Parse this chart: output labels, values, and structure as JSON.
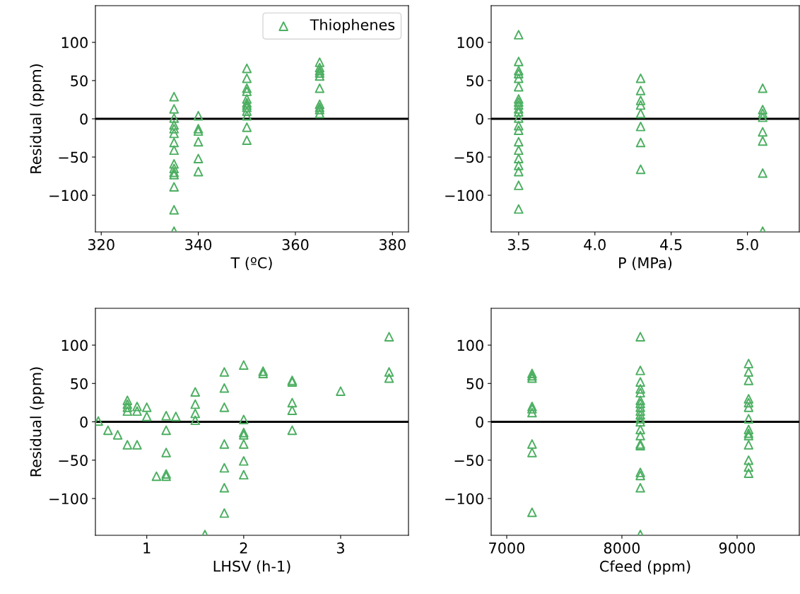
{
  "chart_data": [
    {
      "type": "scatter",
      "xlabel": "T (ºC)",
      "ylabel": "Residual (ppm)",
      "xlim": [
        318.8,
        383.3
      ],
      "xticks": [
        320,
        340,
        360,
        380
      ],
      "ylim": [
        -148,
        148
      ],
      "yticks": [
        -100,
        -50,
        0,
        50,
        100
      ],
      "marker": "triangle",
      "legend": "top right",
      "grid": false,
      "ref_lines": [
        {
          "axis": "y",
          "value": 0,
          "color": "#000000"
        }
      ],
      "series": [
        {
          "name": "Thiophenes",
          "color": "#4daf62",
          "x": [
            335,
            335,
            335,
            335,
            335,
            335,
            335,
            335,
            335,
            335,
            335,
            335,
            335,
            335,
            335,
            340,
            340,
            340,
            340,
            340,
            340,
            350,
            350,
            350,
            350,
            350,
            350,
            350,
            350,
            350,
            350,
            350,
            350,
            365,
            365,
            365,
            365,
            365,
            365,
            365,
            365,
            365,
            365
          ],
          "values": [
            29,
            13,
            1,
            -8,
            -13,
            -19,
            -31,
            -41,
            -59,
            -65,
            -70,
            -73,
            -89,
            -119,
            -147,
            4,
            -13,
            -16,
            -30,
            -52,
            -69,
            66,
            53,
            40,
            36,
            26,
            21,
            18,
            15,
            10,
            4,
            -11,
            -28,
            74,
            67,
            63,
            60,
            56,
            40,
            19,
            15,
            12,
            7
          ]
        }
      ]
    },
    {
      "type": "scatter",
      "xlabel": "P (MPa)",
      "xlim": [
        3.32,
        5.34
      ],
      "xticks": [
        3.5,
        {
          "value": 4,
          "label": "4.0"
        },
        4.5,
        {
          "value": 5,
          "label": "5.0"
        }
      ],
      "ylim": [
        -148,
        148
      ],
      "yticks": [
        -100,
        -50,
        0,
        50,
        100
      ],
      "marker": "triangle",
      "grid": false,
      "ref_lines": [
        {
          "axis": "y",
          "value": 0,
          "color": "#000000"
        }
      ],
      "series": [
        {
          "color": "#4daf62",
          "x": [
            3.5,
            3.5,
            3.5,
            3.5,
            3.5,
            3.5,
            3.5,
            3.5,
            3.5,
            3.5,
            3.5,
            3.5,
            3.5,
            3.5,
            3.5,
            3.5,
            3.5,
            3.5,
            3.5,
            3.5,
            3.5,
            4.3,
            4.3,
            4.3,
            4.3,
            4.3,
            4.3,
            4.3,
            4.3,
            5.1,
            5.1,
            5.1,
            5.1,
            5.1,
            5.1,
            5.1,
            5.1
          ],
          "values": [
            110,
            75,
            63,
            59,
            53,
            42,
            26,
            22,
            18,
            13,
            9,
            1,
            -9,
            -15,
            -30,
            -41,
            -52,
            -61,
            -69,
            -87,
            -118,
            53,
            37,
            24,
            18,
            7,
            -10,
            -31,
            -66,
            40,
            12,
            7,
            2,
            -17,
            -29,
            -71,
            -147
          ]
        }
      ]
    },
    {
      "type": "scatter",
      "xlabel": "LHSV (h-1)",
      "ylabel": "Residual (ppm)",
      "xlim": [
        0.47,
        3.7
      ],
      "xticks": [
        1,
        2,
        3
      ],
      "ylim": [
        -148,
        148
      ],
      "yticks": [
        -100,
        -50,
        0,
        50,
        100
      ],
      "marker": "triangle",
      "grid": false,
      "ref_lines": [
        {
          "axis": "y",
          "value": 0,
          "color": "#000000"
        }
      ],
      "series": [
        {
          "color": "#4daf62",
          "x": [
            0.5,
            0.6,
            0.7,
            0.8,
            0.9,
            0.8,
            0.8,
            0.8,
            0.8,
            0.9,
            0.9,
            1.0,
            1.0,
            1.2,
            1.2,
            1.2,
            1.2,
            1.2,
            1.1,
            1.3,
            1.5,
            1.5,
            1.5,
            1.5,
            1.6,
            1.8,
            1.8,
            1.8,
            1.8,
            1.8,
            1.8,
            1.8,
            2.0,
            2.0,
            2.0,
            2.0,
            2.0,
            2.0,
            2.0,
            2.2,
            2.2,
            2.5,
            2.5,
            2.5,
            2.5,
            2.5,
            3.0,
            3.5,
            3.5,
            3.5
          ],
          "values": [
            1,
            -11,
            -17,
            -30,
            -30,
            28,
            23,
            19,
            14,
            20,
            14,
            19,
            7,
            8,
            -11,
            -40,
            -68,
            -71,
            -71,
            7,
            39,
            23,
            11,
            2,
            -147,
            65,
            44,
            19,
            -29,
            -60,
            -86,
            -119,
            74,
            3,
            -14,
            -17,
            -29,
            -51,
            -69,
            66,
            63,
            52,
            54,
            25,
            15,
            -11,
            40,
            111,
            65,
            57
          ]
        }
      ]
    },
    {
      "type": "scatter",
      "xlabel": "Cfeed (ppm)",
      "xlim": [
        6865,
        9540
      ],
      "xticks": [
        7000,
        8000,
        9000
      ],
      "ylim": [
        -148,
        148
      ],
      "yticks": [
        -100,
        -50,
        0,
        50,
        100
      ],
      "marker": "triangle",
      "grid": false,
      "ref_lines": [
        {
          "axis": "y",
          "value": 0,
          "color": "#000000"
        }
      ],
      "series": [
        {
          "color": "#4daf62",
          "x": [
            7220,
            7220,
            7220,
            7220,
            7220,
            7220,
            7220,
            7220,
            7220,
            8160,
            8160,
            8160,
            8160,
            8160,
            8160,
            8160,
            8160,
            8160,
            8160,
            8160,
            8160,
            8160,
            8160,
            8160,
            8160,
            8160,
            8160,
            8160,
            8160,
            9100,
            9100,
            9100,
            9100,
            9100,
            9100,
            9100,
            9100,
            9100,
            9100,
            9100,
            9100,
            9100,
            9100
          ],
          "values": [
            63,
            60,
            57,
            20,
            17,
            12,
            -29,
            -40,
            -118,
            111,
            67,
            52,
            43,
            38,
            28,
            24,
            19,
            14,
            9,
            4,
            0,
            -10,
            -18,
            -29,
            -31,
            -66,
            -70,
            -86,
            -147,
            76,
            65,
            54,
            30,
            25,
            19,
            4,
            -10,
            -15,
            -18,
            -30,
            -50,
            -59,
            -67
          ]
        }
      ]
    }
  ]
}
